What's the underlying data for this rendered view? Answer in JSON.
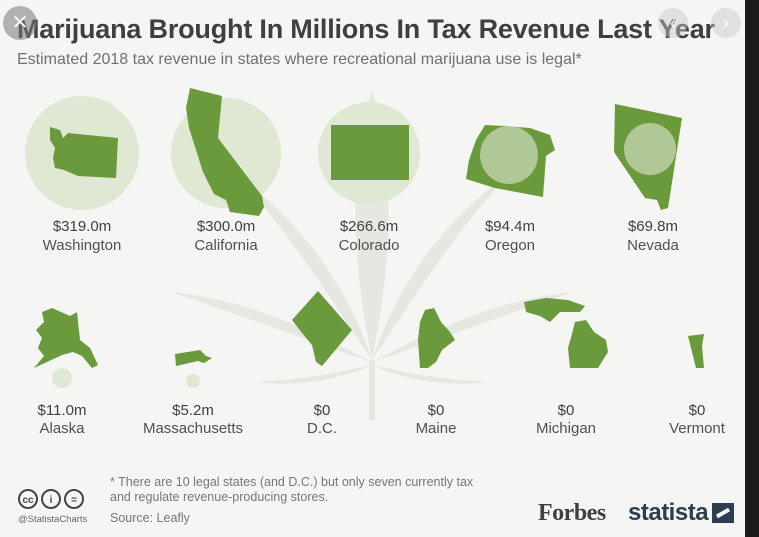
{
  "header": {
    "title": "Marijuana Brought In Millions In Tax Revenue Last Year",
    "subtitle": "Estimated 2018 tax revenue in states where recreational marijuana use is legal*"
  },
  "controls": {
    "close_icon": "close-icon",
    "prev_icon": "chevron-left-icon",
    "next_icon": "chevron-right-icon"
  },
  "colors": {
    "state_fill": "#6a9a3c",
    "bubble_fill": "#dfe8d2",
    "leaf_watermark": "#e7e7e2"
  },
  "chart_data": {
    "type": "bubble-map",
    "unit": "millions USD",
    "items": [
      {
        "state": "Washington",
        "label": "$319.0m",
        "value": 319.0
      },
      {
        "state": "California",
        "label": "$300.0m",
        "value": 300.0
      },
      {
        "state": "Colorado",
        "label": "$266.6m",
        "value": 266.6
      },
      {
        "state": "Oregon",
        "label": "$94.4m",
        "value": 94.4
      },
      {
        "state": "Nevada",
        "label": "$69.8m",
        "value": 69.8
      },
      {
        "state": "Alaska",
        "label": "$11.0m",
        "value": 11.0
      },
      {
        "state": "Massachusetts",
        "label": "$5.2m",
        "value": 5.2
      },
      {
        "state": "D.C.",
        "label": "$0",
        "value": 0
      },
      {
        "state": "Maine",
        "label": "$0",
        "value": 0
      },
      {
        "state": "Michigan",
        "label": "$0",
        "value": 0
      },
      {
        "state": "Vermont",
        "label": "$0",
        "value": 0
      }
    ]
  },
  "footer": {
    "footnote": "* There are 10 legal states (and D.C.) but only seven currently tax and regulate revenue-producing stores.",
    "source": "Source: Leafly",
    "handle": "@StatistaCharts",
    "cc_labels": [
      "cc",
      "i",
      "="
    ],
    "brand_forbes": "Forbes",
    "brand_statista": "statista"
  }
}
